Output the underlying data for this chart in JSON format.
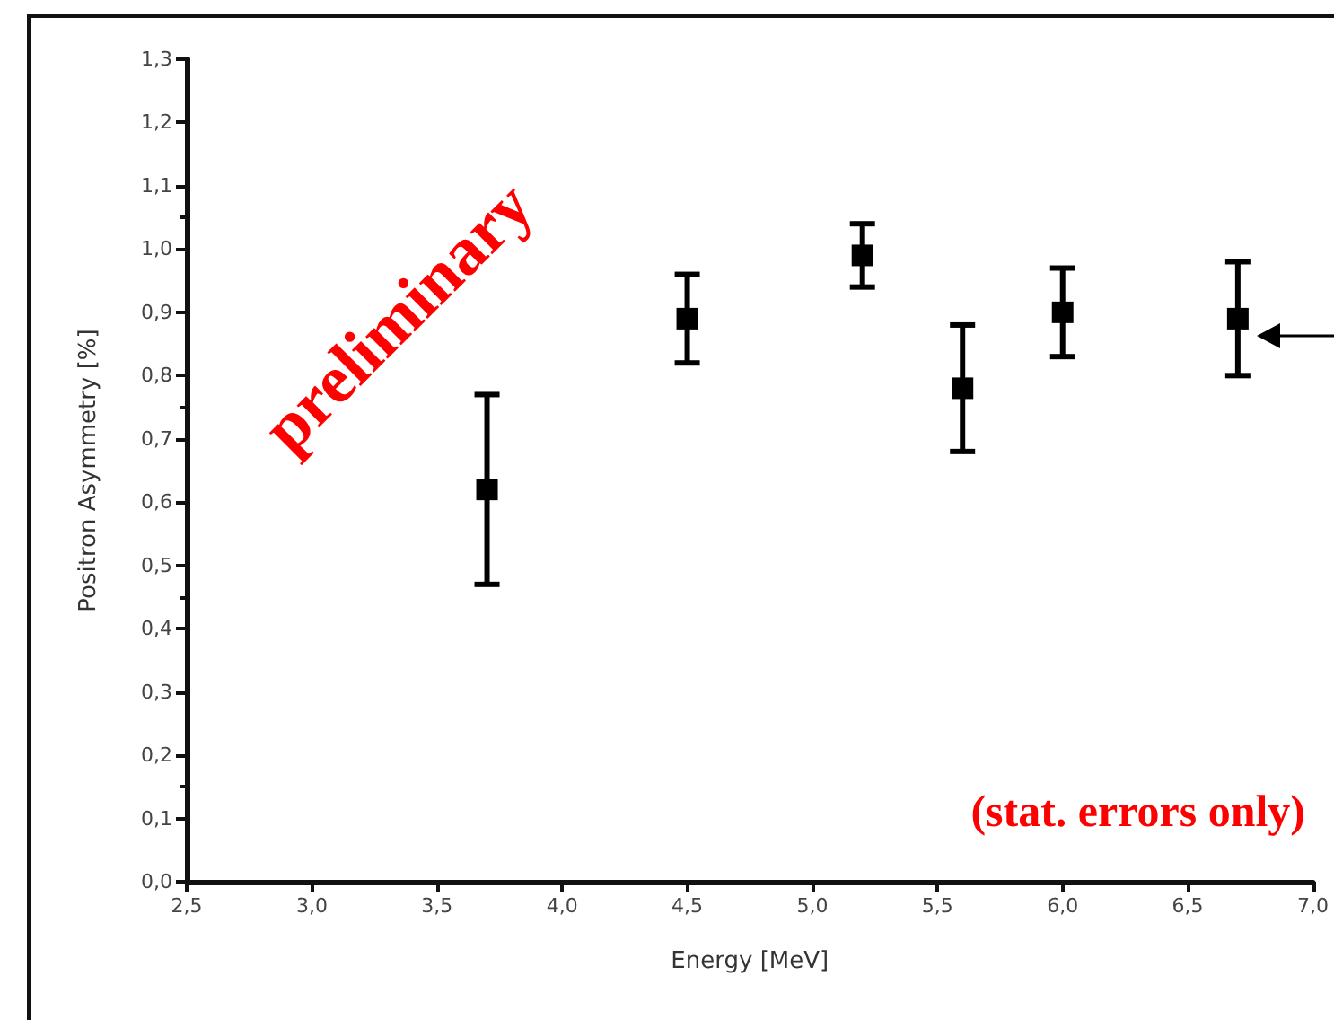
{
  "chart_data": {
    "type": "scatter",
    "xlabel": "Energy [MeV]",
    "ylabel": "Positron Asymmetry [%]",
    "annotations": [
      "preliminary",
      "(stat. errors only)"
    ],
    "x": [
      3.7,
      4.5,
      5.2,
      5.6,
      6.0,
      6.7
    ],
    "series": [
      {
        "color": "#000000",
        "values": [
          0.62,
          0.89,
          0.99,
          0.78,
          0.9,
          0.89
        ],
        "errors": [
          [
            0.47,
            0.77
          ],
          [
            0.82,
            0.96
          ],
          [
            0.94,
            1.04
          ],
          [
            0.68,
            0.88
          ],
          [
            0.83,
            0.97
          ],
          [
            0.8,
            0.98
          ]
        ]
      }
    ],
    "marker": "square",
    "grid": false,
    "xlim": [
      2.5,
      7.0
    ],
    "xticks": [
      {
        "value": 2.5,
        "label": "2,5"
      },
      {
        "value": 3.0,
        "label": "3,0"
      },
      {
        "value": 3.5,
        "label": "3,5"
      },
      {
        "value": 4.0,
        "label": "4,0"
      },
      {
        "value": 4.5,
        "label": "4,5"
      },
      {
        "value": 5.0,
        "label": "5,0"
      },
      {
        "value": 5.5,
        "label": "5,5"
      },
      {
        "value": 6.0,
        "label": "6,0"
      },
      {
        "value": 6.5,
        "label": "6,5"
      },
      {
        "value": 7.0,
        "label": "7,0"
      }
    ],
    "ylim": [
      0,
      1.3
    ],
    "yticks": [
      {
        "value": 0,
        "label": "0,0"
      },
      {
        "value": 0.1,
        "label": "0,1"
      },
      {
        "value": 0.2,
        "label": "0,2"
      },
      {
        "value": 0.3,
        "label": "0,3"
      },
      {
        "value": 0.4,
        "label": "0,4"
      },
      {
        "value": 0.5,
        "label": "0,5"
      },
      {
        "value": 0.6,
        "label": "0,6"
      },
      {
        "value": 0.7,
        "label": "0,7"
      },
      {
        "value": 0.8,
        "label": "0,8"
      },
      {
        "value": 0.9,
        "label": "0,9"
      },
      {
        "value": 1.0,
        "label": "1,0"
      },
      {
        "value": 1.1,
        "label": "1,1"
      },
      {
        "value": 1.2,
        "label": "1,2"
      },
      {
        "value": 1.3,
        "label": "1,3"
      }
    ]
  }
}
